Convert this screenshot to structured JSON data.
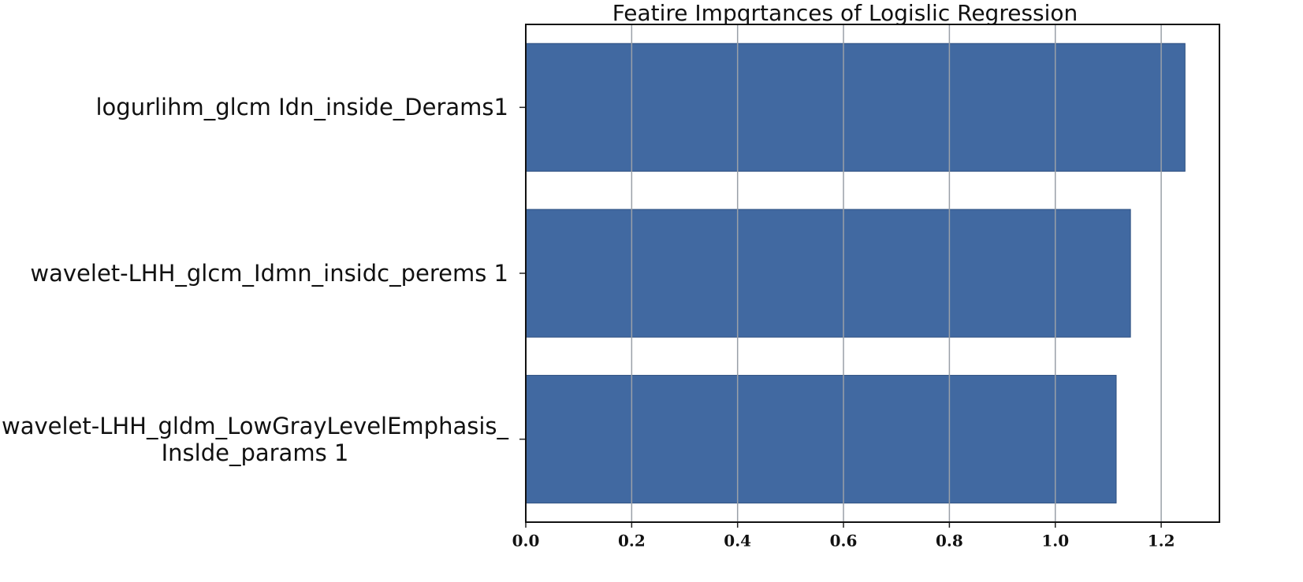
{
  "chart_data": {
    "type": "barh",
    "title": "Featire Impqrtances of Logislic Regression",
    "categories": [
      "logurlihm_glcm Idn_inside_Derams1",
      "wavelet-LHH_glcm_Idmn_insidc_perems 1",
      "wavelet-LHH_gldm_LowGrayLevelEmphasis_\nInslde_params 1"
    ],
    "values": [
      1.245,
      1.142,
      1.115
    ],
    "color": "#4169a1",
    "xlim": [
      0,
      1.31
    ],
    "xticks": [
      {
        "value": 0,
        "label": "0.0"
      },
      0.2,
      0.4,
      0.6,
      0.8,
      {
        "value": 1,
        "label": "1.0"
      },
      1.2
    ],
    "grid": true
  }
}
